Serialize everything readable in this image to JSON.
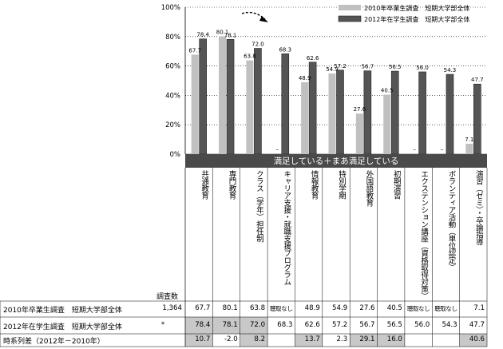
{
  "chart_data": {
    "type": "bar",
    "yticks": [
      "0%",
      "20%",
      "40%",
      "60%",
      "80%",
      "100%"
    ],
    "ylim": [
      0,
      100
    ],
    "band_label": "満足している＋まあ満足している",
    "categories": [
      "共通教育",
      "専門教育",
      "クラス（学年）担任制",
      "キャリア支援・就職支援プログラム",
      "情報教育",
      "特別学期",
      "外国語教育",
      "初期演習",
      "エクステンション講座（資格取得対策）",
      "ボランティア活動（単位認定）",
      "演習（ゼミ）・卒論指導"
    ],
    "series": [
      {
        "name": "2010年卒業生調査　短期大学部全体",
        "color": "#c0c0c0",
        "values": [
          67.7,
          80.1,
          63.8,
          null,
          48.9,
          54.9,
          27.6,
          40.5,
          null,
          null,
          7.1
        ],
        "labels": [
          "67.7",
          "80.1",
          "63.8",
          "–",
          "48.9",
          "54.9",
          "27.6",
          "40.5",
          "–",
          "–",
          "7.1"
        ]
      },
      {
        "name": "2012年在学生調査　短期大学部全体",
        "color": "#555555",
        "values": [
          78.4,
          78.1,
          72.0,
          68.3,
          62.6,
          57.2,
          56.7,
          56.5,
          56.0,
          54.3,
          47.7
        ],
        "labels": [
          "78.4",
          "78.1",
          "72.0",
          "68.3",
          "62.6",
          "57.2",
          "56.7",
          "56.5",
          "56.0",
          "54.3",
          "47.7"
        ]
      }
    ]
  },
  "table": {
    "count_header": "調査数",
    "rows": [
      {
        "label": "2010年卒業生調査　短期大学部全体",
        "count": "1,364",
        "cells": [
          "67.7",
          "80.1",
          "63.8",
          "聴取なし",
          "48.9",
          "54.9",
          "27.6",
          "40.5",
          "聴取なし",
          "聴取なし",
          "7.1"
        ],
        "shaded": [
          false,
          false,
          false,
          false,
          false,
          false,
          false,
          false,
          false,
          false,
          false
        ]
      },
      {
        "label": "2012年在学生調査　短期大学部全体",
        "count": "*",
        "cells": [
          "78.4",
          "78.1",
          "72.0",
          "68.3",
          "62.6",
          "57.2",
          "56.7",
          "56.5",
          "56.0",
          "54.3",
          "47.7"
        ],
        "shaded": [
          true,
          true,
          true,
          false,
          false,
          false,
          false,
          false,
          false,
          false,
          false
        ]
      },
      {
        "label": "時系列差（2012年－2010年）",
        "count": "",
        "cells": [
          "10.7",
          "-2.0",
          "8.2",
          "",
          "13.7",
          "2.3",
          "29.1",
          "16.0",
          "",
          "",
          "40.6"
        ],
        "shaded": [
          true,
          false,
          true,
          false,
          true,
          false,
          true,
          true,
          false,
          false,
          true
        ]
      }
    ]
  }
}
